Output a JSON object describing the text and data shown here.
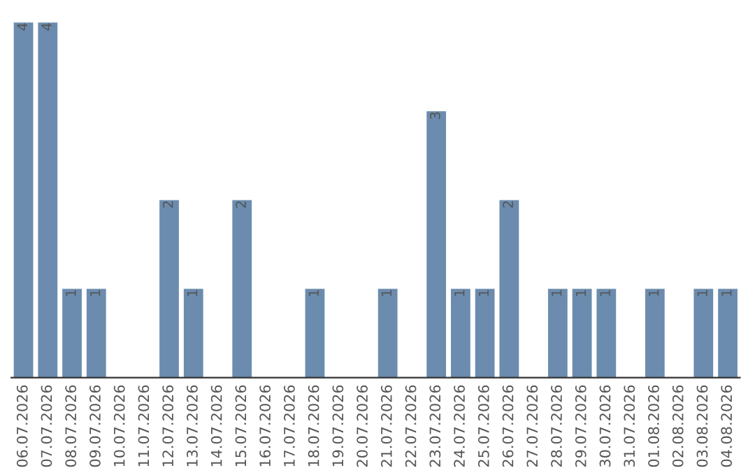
{
  "chart_data": {
    "type": "bar",
    "categories": [
      "06.07.2026",
      "07.07.2026",
      "08.07.2026",
      "09.07.2026",
      "10.07.2026",
      "11.07.2026",
      "12.07.2026",
      "13.07.2026",
      "14.07.2026",
      "15.07.2026",
      "16.07.2026",
      "17.07.2026",
      "18.07.2026",
      "19.07.2026",
      "20.07.2026",
      "21.07.2026",
      "22.07.2026",
      "23.07.2026",
      "24.07.2026",
      "25.07.2026",
      "26.07.2026",
      "27.07.2026",
      "28.07.2026",
      "29.07.2026",
      "30.07.2026",
      "31.07.2026",
      "01.08.2026",
      "02.08.2026",
      "03.08.2026",
      "04.08.2026"
    ],
    "values": [
      4,
      4,
      1,
      1,
      0,
      0,
      2,
      1,
      0,
      2,
      0,
      0,
      1,
      0,
      0,
      1,
      0,
      3,
      1,
      1,
      2,
      0,
      1,
      1,
      1,
      0,
      1,
      0,
      1,
      1
    ],
    "value_labels": [
      "4",
      "4",
      "1",
      "1",
      null,
      null,
      "2",
      "1",
      null,
      "2",
      null,
      null,
      "1",
      null,
      null,
      "1",
      null,
      "3",
      "1",
      "1",
      "2",
      null,
      "1",
      "1",
      "1",
      null,
      "1",
      null,
      "1",
      "1"
    ],
    "color": "#6b8cae",
    "tick_labels": "x"
  }
}
